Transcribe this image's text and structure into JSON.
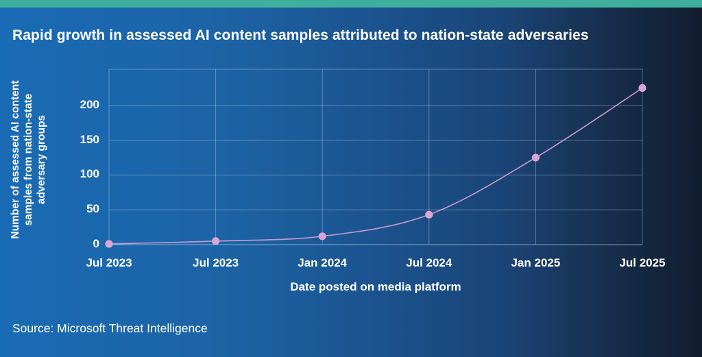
{
  "header": {
    "title": "Rapid growth in assessed AI content samples attributed to nation-state adversaries"
  },
  "footer": {
    "source": "Source: Microsoft Threat Intelligence"
  },
  "colors": {
    "accent_teal": "#3fae9d",
    "background_left": "#1a6bb5",
    "background_right": "#121c2e",
    "text": "#ffffff",
    "gridline": "rgba(205,223,238,0.38)"
  },
  "chart_data": {
    "type": "line",
    "title": "Rapid growth in assessed AI content samples attributed to nation-state adversaries",
    "xlabel": "Date posted on media platform",
    "ylabel": "Number of assessed AI content samples from nation-state adversary groups",
    "ylabel_lines": [
      "Number of assessed AI content",
      "samples from nation-state",
      "adversary groups"
    ],
    "categories": [
      "Jul 2023",
      "Jul 2023",
      "Jan 2024",
      "Jul 2024",
      "Jan 2025",
      "Jul 2025"
    ],
    "values": [
      1,
      5,
      12,
      43,
      125,
      225
    ],
    "y_ticks": [
      0,
      50,
      100,
      150,
      200
    ],
    "ylim": [
      0,
      252
    ],
    "grid": true,
    "legend": "none",
    "line_color": "#d2a2d2",
    "point_color": "#d9a4d6"
  }
}
